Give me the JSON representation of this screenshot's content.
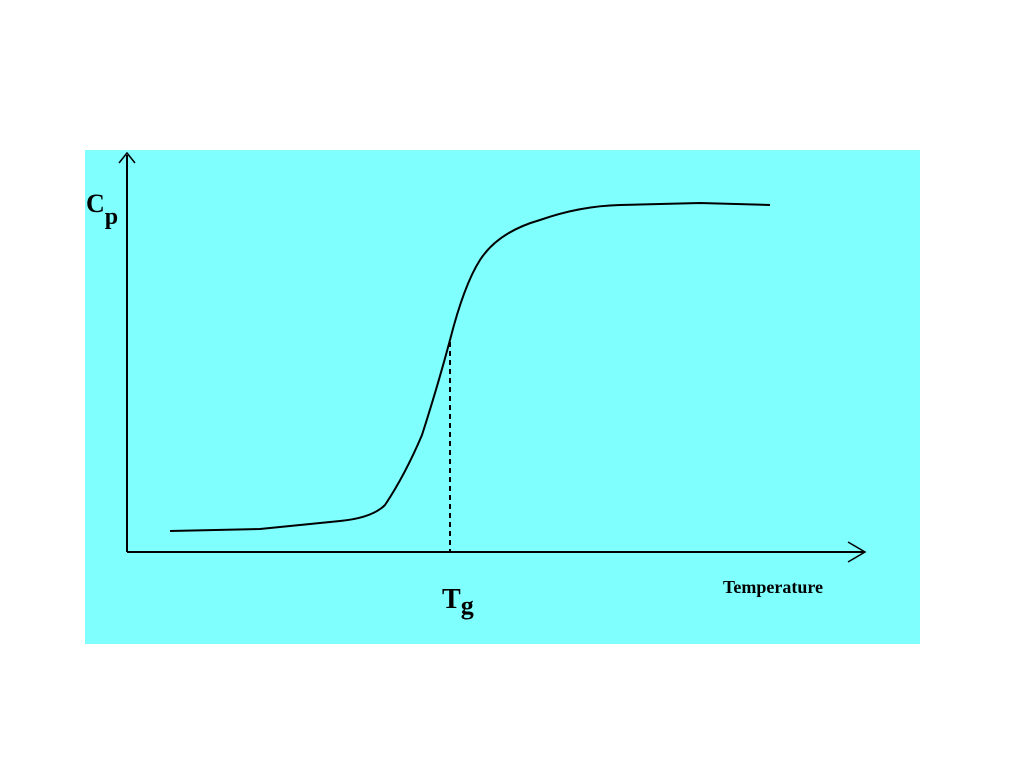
{
  "y_axis_label": {
    "main": "C",
    "sub": "p"
  },
  "marker_label": {
    "main": "T",
    "sub": "g"
  },
  "x_axis_label": "Temperature"
}
